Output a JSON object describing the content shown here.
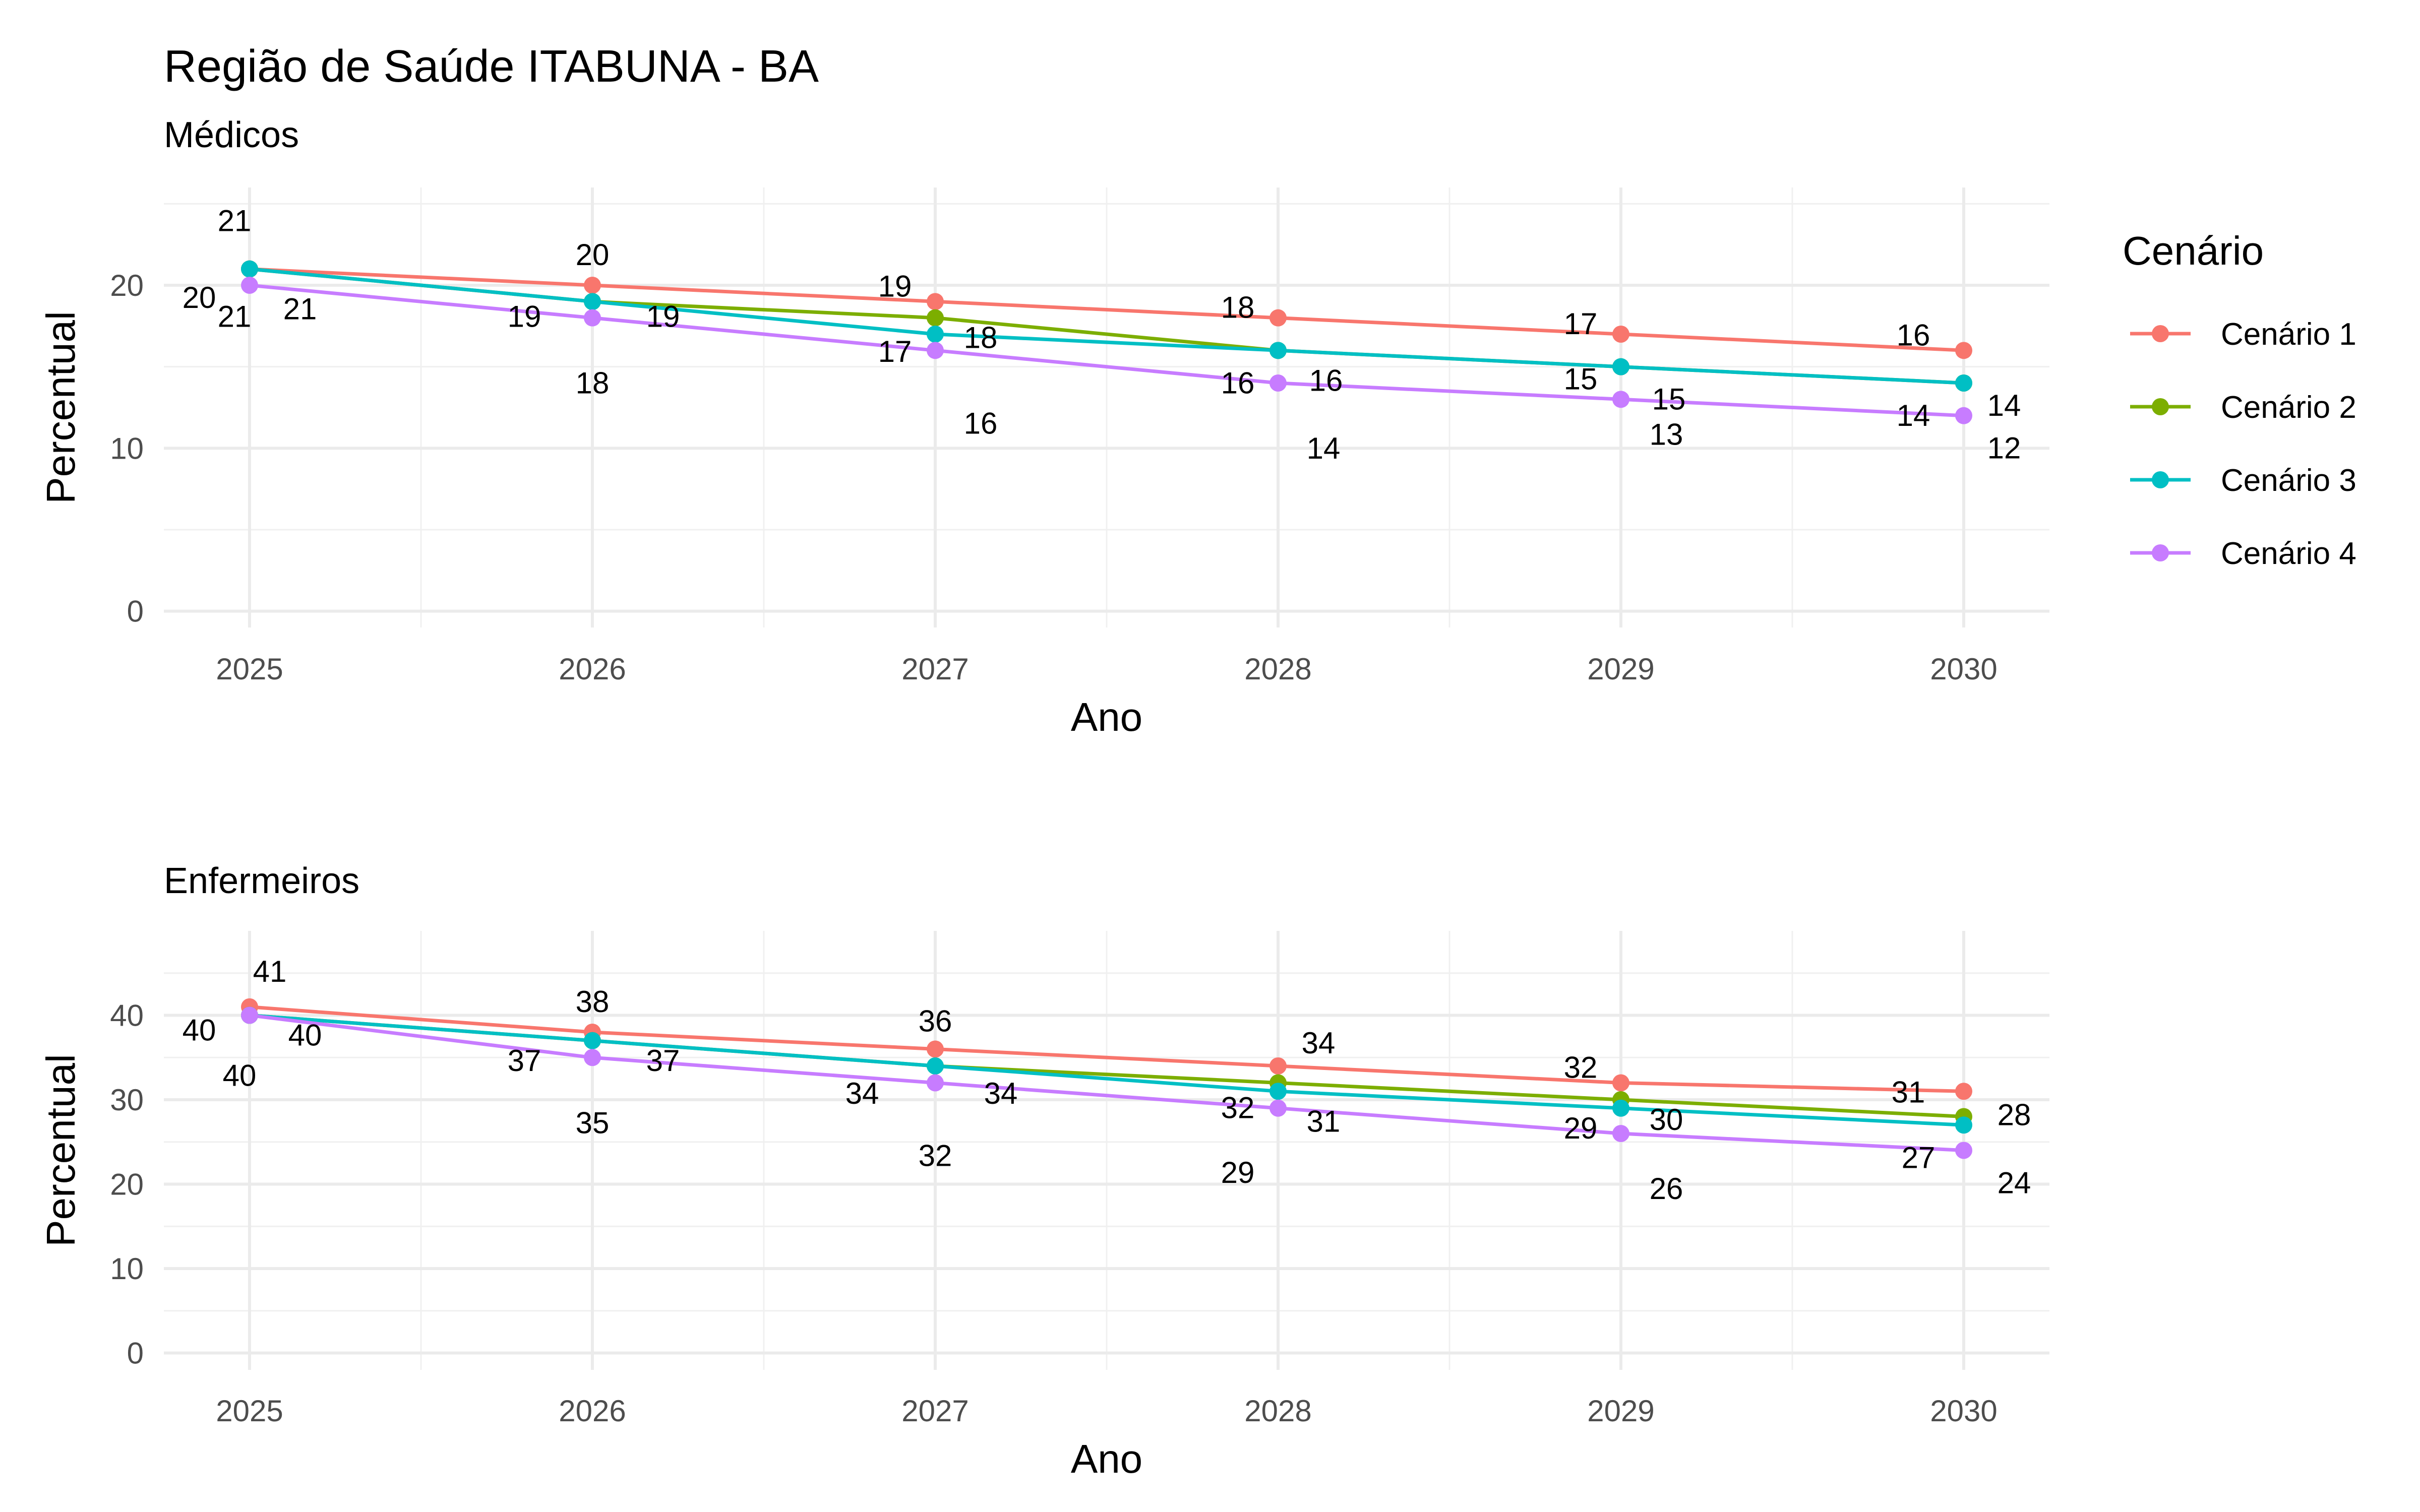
{
  "chart_data": {
    "type": "line",
    "title": "Região de Saúde ITABUNA - BA",
    "legend": {
      "title": "Cenário",
      "position": "right"
    },
    "series_colors": {
      "Cenário 1": "#F8766D",
      "Cenário 2": "#7CAE00",
      "Cenário 3": "#00BFC4",
      "Cenário 4": "#C77CFF"
    },
    "grid": true,
    "panels": [
      {
        "subtitle": "Médicos",
        "xlabel": "Ano",
        "ylabel": "Percentual",
        "x": [
          2025,
          2026,
          2027,
          2028,
          2029,
          2030
        ],
        "xticks": [
          "2025",
          "2026",
          "2027",
          "2028",
          "2029",
          "2030"
        ],
        "yticks": [
          0,
          10,
          20
        ],
        "ylim": [
          -1,
          26
        ],
        "series": [
          {
            "name": "Cenário 1",
            "values": [
              21,
              20,
              19,
              18,
              17,
              16
            ]
          },
          {
            "name": "Cenário 2",
            "values": [
              21,
              19,
              18,
              16,
              15,
              14
            ]
          },
          {
            "name": "Cenário 3",
            "values": [
              21,
              19,
              17,
              16,
              15,
              14
            ]
          },
          {
            "name": "Cenário 4",
            "values": [
              20,
              18,
              16,
              14,
              13,
              12
            ]
          }
        ]
      },
      {
        "subtitle": "Enfermeiros",
        "xlabel": "Ano",
        "ylabel": "Percentual",
        "x": [
          2025,
          2026,
          2027,
          2028,
          2029,
          2030
        ],
        "xticks": [
          "2025",
          "2026",
          "2027",
          "2028",
          "2029",
          "2030"
        ],
        "yticks": [
          0,
          10,
          20,
          30,
          40
        ],
        "ylim": [
          -2,
          50
        ],
        "series": [
          {
            "name": "Cenário 1",
            "values": [
              41,
              38,
              36,
              34,
              32,
              31
            ]
          },
          {
            "name": "Cenário 2",
            "values": [
              40,
              37,
              34,
              32,
              30,
              28
            ]
          },
          {
            "name": "Cenário 3",
            "values": [
              40,
              37,
              34,
              31,
              29,
              27
            ]
          },
          {
            "name": "Cenário 4",
            "values": [
              40,
              35,
              32,
              29,
              26,
              24
            ]
          }
        ]
      }
    ]
  }
}
